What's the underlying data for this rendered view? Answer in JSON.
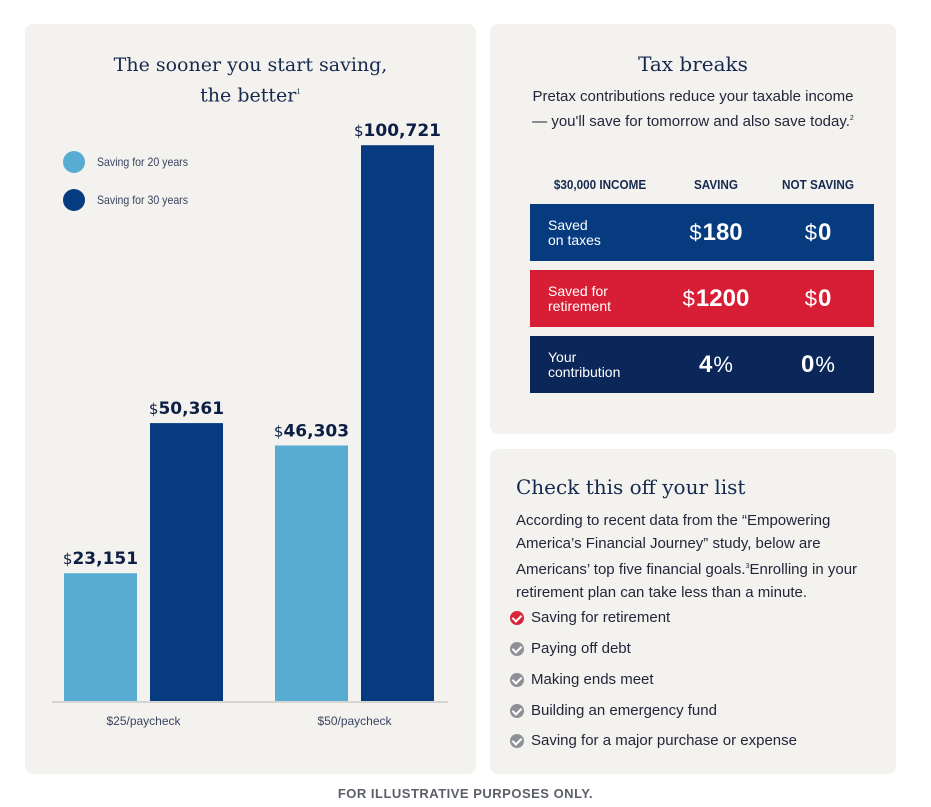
{
  "chart_data": {
    "type": "bar",
    "title": "The sooner you start saving, the better",
    "title_line1": "The sooner you start saving,",
    "title_line2": "the better",
    "title_footnote": "1",
    "categories": [
      "$25/paycheck",
      "$50/paycheck"
    ],
    "series": [
      {
        "name": "Saving for 20 years",
        "color": "#58acd2",
        "values": [
          23151,
          46303
        ],
        "labels": [
          "23,151",
          "46,303"
        ]
      },
      {
        "name": "Saving for 30 years",
        "color": "#063b80",
        "values": [
          50361,
          100721
        ],
        "labels": [
          "50,361",
          "100,721"
        ]
      }
    ],
    "currency_symbol": "$",
    "ylim": [
      0,
      110000
    ],
    "grid": false,
    "legend_position": "top-left"
  },
  "tax": {
    "title": "Tax breaks",
    "description": "Pretax contributions reduce your taxable income — you'll save for tomorrow and also save today.",
    "footnote": "2",
    "columns": [
      "$30,000 INCOME",
      "SAVING",
      "NOT SAVING"
    ],
    "rows": [
      {
        "label_line1": "Saved",
        "label_line2": "on taxes",
        "saving": "180",
        "not_saving": "0",
        "unit": "currency",
        "color": "#063b80"
      },
      {
        "label_line1": "Saved for",
        "label_line2": "retirement",
        "saving": "1200",
        "not_saving": "0",
        "unit": "currency",
        "color": "#d81e34"
      },
      {
        "label_line1": "Your",
        "label_line2": "contribution",
        "saving": "4",
        "not_saving": "0",
        "unit": "percent",
        "color": "#0b2759"
      }
    ],
    "currency_symbol": "$",
    "percent_symbol": "%"
  },
  "checklist": {
    "title": "Check this off your list",
    "description_part1": "According to recent data from the “Empowering America’s Financial Journey” study, below are Americans’ top five financial goals.",
    "footnote": "3",
    "description_part2": "Enrolling in your retirement plan can take less than a minute.",
    "items": [
      {
        "label": "Saving for retirement",
        "active": true
      },
      {
        "label": "Paying off debt",
        "active": false
      },
      {
        "label": "Making ends meet",
        "active": false
      },
      {
        "label": "Building an emergency fund",
        "active": false
      },
      {
        "label": "Saving for a major purchase or expense",
        "active": false
      }
    ]
  },
  "footer": {
    "text": "FOR ILLUSTRATIVE PURPOSES ONLY."
  }
}
